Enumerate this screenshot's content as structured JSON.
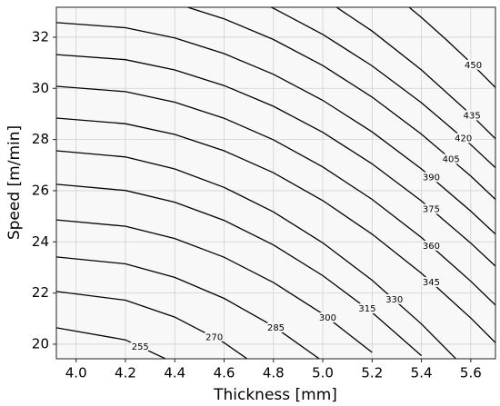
{
  "chart_data": {
    "type": "contour",
    "x_label": "Thickness [mm]",
    "y_label": "Speed [m/min]",
    "xlim": [
      3.92,
      5.7
    ],
    "ylim": [
      19.43,
      33.17
    ],
    "xticks": [
      {
        "value": 4.0,
        "label": "4.0"
      },
      {
        "value": 4.2,
        "label": "4.2"
      },
      {
        "value": 4.4,
        "label": "4.4"
      },
      {
        "value": 4.6,
        "label": "4.6"
      },
      {
        "value": 4.8,
        "label": "4.8"
      },
      {
        "value": 5.0,
        "label": "5.0"
      },
      {
        "value": 5.2,
        "label": "5.2"
      },
      {
        "value": 5.4,
        "label": "5.4"
      },
      {
        "value": 5.6,
        "label": "5.6"
      }
    ],
    "yticks": [
      20,
      22,
      24,
      26,
      28,
      30,
      32
    ],
    "grid": true,
    "color": "#000000",
    "contours": [
      {
        "level": 255,
        "x": [
          3.92,
          4.2,
          4.4
        ],
        "y": [
          20.64,
          20.17,
          19.26
        ]
      },
      {
        "level": 270,
        "x": [
          3.92,
          4.2,
          4.4,
          4.6,
          4.8
        ],
        "y": [
          22.06,
          21.72,
          21.06,
          20.06,
          18.71
        ]
      },
      {
        "level": 285,
        "x": [
          3.92,
          4.2,
          4.4,
          4.6,
          4.8,
          5.0
        ],
        "y": [
          23.41,
          23.14,
          22.61,
          21.79,
          20.7,
          19.33
        ]
      },
      {
        "level": 300,
        "x": [
          3.92,
          4.2,
          4.4,
          4.6,
          4.8,
          5.0,
          5.2
        ],
        "y": [
          24.86,
          24.61,
          24.13,
          23.4,
          22.41,
          21.18,
          19.68
        ]
      },
      {
        "level": 315,
        "x": [
          3.92,
          4.2,
          4.4,
          4.6,
          4.8,
          5.0,
          5.2,
          5.4
        ],
        "y": [
          26.25,
          26.01,
          25.55,
          24.84,
          23.88,
          22.68,
          21.24,
          19.55
        ]
      },
      {
        "level": 330,
        "x": [
          3.92,
          4.2,
          4.4,
          4.6,
          4.8,
          5.0,
          5.2,
          5.4,
          5.6
        ],
        "y": [
          27.56,
          27.32,
          26.85,
          26.13,
          25.17,
          23.96,
          22.5,
          20.79,
          18.84
        ]
      },
      {
        "level": 345,
        "x": [
          3.92,
          4.2,
          4.4,
          4.6,
          4.8,
          5.0,
          5.2,
          5.4,
          5.6,
          5.7
        ],
        "y": [
          28.84,
          28.62,
          28.2,
          27.56,
          26.7,
          25.61,
          24.3,
          22.77,
          21.02,
          20.06
        ]
      },
      {
        "level": 360,
        "x": [
          3.92,
          4.2,
          4.4,
          4.6,
          4.8,
          5.0,
          5.2,
          5.4,
          5.6,
          5.7
        ],
        "y": [
          30.08,
          29.87,
          29.46,
          28.83,
          27.99,
          26.93,
          25.66,
          24.17,
          22.46,
          21.53
        ]
      },
      {
        "level": 375,
        "x": [
          3.92,
          4.2,
          4.4,
          4.6,
          4.8,
          5.0,
          5.2,
          5.4,
          5.6,
          5.7
        ],
        "y": [
          31.32,
          31.12,
          30.72,
          30.11,
          29.3,
          28.28,
          27.05,
          25.6,
          23.95,
          23.05
        ]
      },
      {
        "level": 390,
        "x": [
          3.92,
          4.2,
          4.4,
          4.6,
          4.8,
          5.0,
          5.2,
          5.4,
          5.6,
          5.7
        ],
        "y": [
          32.57,
          32.37,
          31.97,
          31.36,
          30.55,
          29.53,
          28.3,
          26.85,
          25.2,
          24.3
        ]
      },
      {
        "level": 405,
        "x": [
          4.4,
          4.6,
          4.8,
          5.0,
          5.2,
          5.4,
          5.6,
          5.7
        ],
        "y": [
          33.33,
          32.72,
          31.91,
          30.89,
          29.66,
          28.21,
          26.57,
          25.66
        ]
      },
      {
        "level": 420,
        "x": [
          4.6,
          4.8,
          5.0,
          5.2,
          5.4,
          5.6,
          5.7
        ],
        "y": [
          33.94,
          33.13,
          32.11,
          30.88,
          29.44,
          27.8,
          26.9
        ]
      },
      {
        "level": 435,
        "x": [
          5.0,
          5.2,
          5.4,
          5.6,
          5.7
        ],
        "y": [
          33.53,
          32.24,
          30.72,
          28.98,
          28.03
        ]
      },
      {
        "level": 450,
        "x": [
          5.3,
          5.4,
          5.5,
          5.6,
          5.7
        ],
        "y": [
          33.57,
          32.77,
          31.91,
          31.0,
          30.03
        ]
      }
    ]
  }
}
